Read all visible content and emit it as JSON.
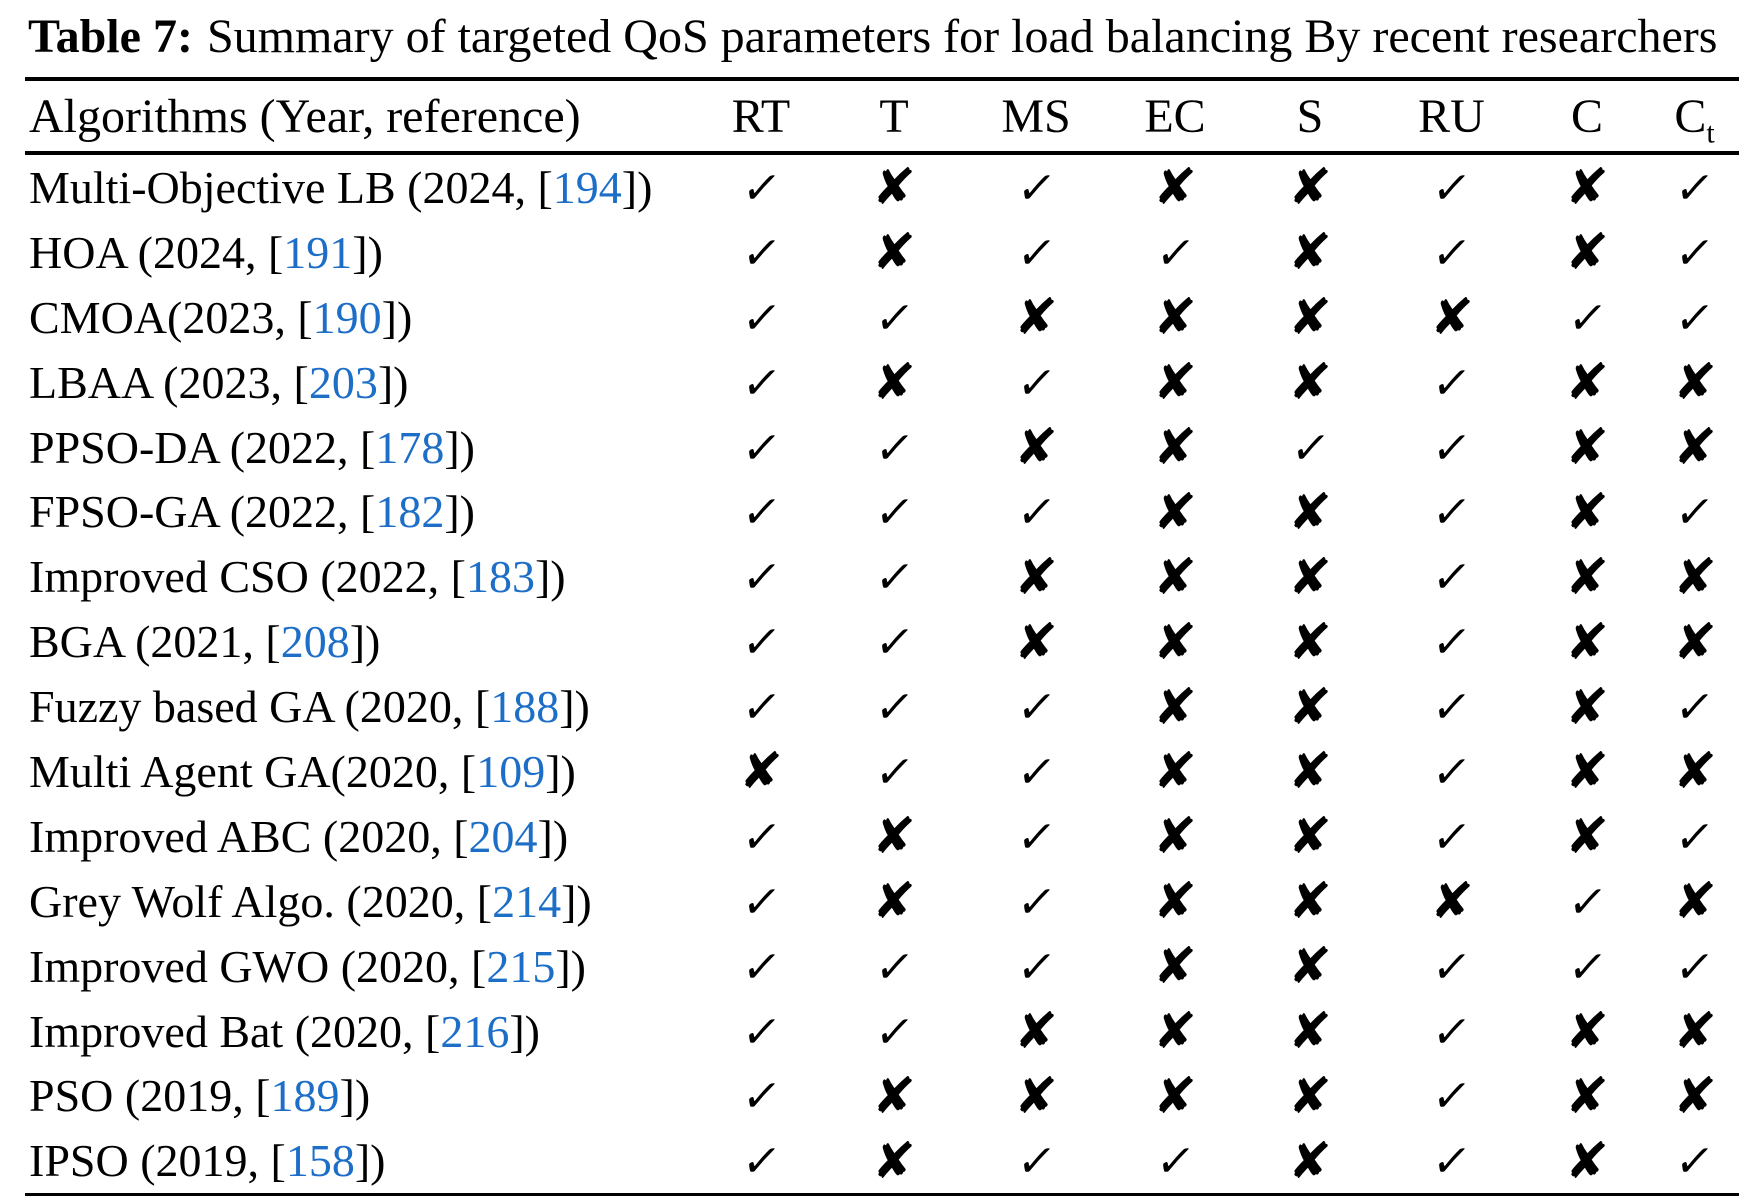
{
  "title": {
    "label": "Table 7:",
    "text": "Summary of targeted QoS parameters for load balancing By recent researchers"
  },
  "colors": {
    "link_blue": "#1d6ec7",
    "text_black": "#000000"
  },
  "table": {
    "first_header": "Algorithms (Year, reference)",
    "headers": [
      {
        "label": "RT"
      },
      {
        "label": "T"
      },
      {
        "label": "MS"
      },
      {
        "label": "EC"
      },
      {
        "label": "S"
      },
      {
        "label": "RU"
      },
      {
        "label": "C"
      },
      {
        "label": "C",
        "sub": "t"
      }
    ],
    "glyphs": {
      "check": "✓",
      "cross": "✘"
    },
    "rows": [
      {
        "name_prefix": "Multi-Objective LB (2024, [",
        "ref": "194",
        "name_suffix": "])",
        "marks": [
          "check",
          "cross",
          "check",
          "cross",
          "cross",
          "check",
          "cross",
          "check"
        ]
      },
      {
        "name_prefix": "HOA (2024, [",
        "ref": "191",
        "name_suffix": "])",
        "marks": [
          "check",
          "cross",
          "check",
          "check",
          "cross",
          "check",
          "cross",
          "check"
        ]
      },
      {
        "name_prefix": "CMOA(2023, [",
        "ref": "190",
        "name_suffix": "])",
        "marks": [
          "check",
          "check",
          "cross",
          "cross",
          "cross",
          "cross",
          "check",
          "check"
        ]
      },
      {
        "name_prefix": "LBAA (2023, [",
        "ref": "203",
        "name_suffix": "])",
        "marks": [
          "check",
          "cross",
          "check",
          "cross",
          "cross",
          "check",
          "cross",
          "cross"
        ]
      },
      {
        "name_prefix": "PPSO-DA (2022, [",
        "ref": "178",
        "name_suffix": "])",
        "marks": [
          "check",
          "check",
          "cross",
          "cross",
          "check",
          "check",
          "cross",
          "cross"
        ]
      },
      {
        "name_prefix": "FPSO-GA (2022, [",
        "ref": "182",
        "name_suffix": "])",
        "marks": [
          "check",
          "check",
          "check",
          "cross",
          "cross",
          "check",
          "cross",
          "check"
        ]
      },
      {
        "name_prefix": "Improved CSO (2022, [",
        "ref": "183",
        "name_suffix": "])",
        "marks": [
          "check",
          "check",
          "cross",
          "cross",
          "cross",
          "check",
          "cross",
          "cross"
        ]
      },
      {
        "name_prefix": "BGA (2021, [",
        "ref": "208",
        "name_suffix": "])",
        "marks": [
          "check",
          "check",
          "cross",
          "cross",
          "cross",
          "check",
          "cross",
          "cross"
        ]
      },
      {
        "name_prefix": "Fuzzy based GA (2020, [",
        "ref": "188",
        "name_suffix": "])",
        "marks": [
          "check",
          "check",
          "check",
          "cross",
          "cross",
          "check",
          "cross",
          "check"
        ]
      },
      {
        "name_prefix": "Multi Agent GA(2020, [",
        "ref": "109",
        "name_suffix": "])",
        "marks": [
          "cross",
          "check",
          "check",
          "cross",
          "cross",
          "check",
          "cross",
          "cross"
        ]
      },
      {
        "name_prefix": "Improved ABC (2020, [",
        "ref": "204",
        "name_suffix": "])",
        "marks": [
          "check",
          "cross",
          "check",
          "cross",
          "cross",
          "check",
          "cross",
          "check"
        ]
      },
      {
        "name_prefix": "Grey Wolf Algo. (2020, [",
        "ref": "214",
        "name_suffix": "])",
        "marks": [
          "check",
          "cross",
          "check",
          "cross",
          "cross",
          "cross",
          "check",
          "cross"
        ]
      },
      {
        "name_prefix": "Improved GWO (2020, [",
        "ref": "215",
        "name_suffix": "])",
        "marks": [
          "check",
          "check",
          "check",
          "cross",
          "cross",
          "check",
          "check",
          "check"
        ]
      },
      {
        "name_prefix": "Improved Bat (2020, [",
        "ref": "216",
        "name_suffix": "])",
        "marks": [
          "check",
          "check",
          "cross",
          "cross",
          "cross",
          "check",
          "cross",
          "cross"
        ]
      },
      {
        "name_prefix": "PSO (2019, [",
        "ref": "189",
        "name_suffix": "])",
        "marks": [
          "check",
          "cross",
          "cross",
          "cross",
          "cross",
          "check",
          "cross",
          "cross"
        ]
      },
      {
        "name_prefix": "IPSO (2019, [",
        "ref": "158",
        "name_suffix": "])",
        "marks": [
          "check",
          "cross",
          "check",
          "check",
          "cross",
          "check",
          "cross",
          "check"
        ]
      }
    ]
  }
}
